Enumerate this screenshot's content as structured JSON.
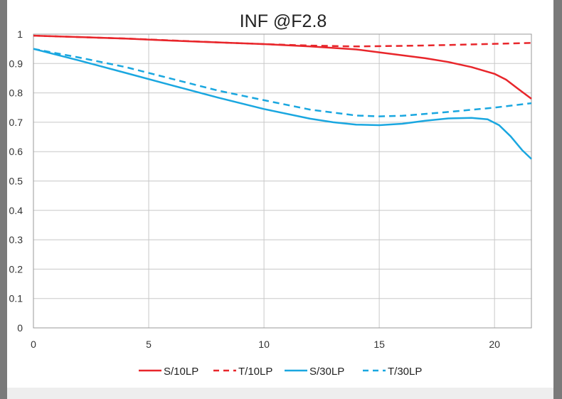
{
  "chart_data": {
    "type": "line",
    "title": "INF @F2.8",
    "xlim": [
      0,
      21.6
    ],
    "ylim": [
      0,
      1
    ],
    "x_ticks": [
      "0",
      "5",
      "10",
      "15",
      "20"
    ],
    "y_ticks": [
      "0",
      "0.1",
      "0.2",
      "0.3",
      "0.4",
      "0.5",
      "0.6",
      "0.7",
      "0.8",
      "0.9",
      "1"
    ],
    "grid": true,
    "legend_position": "bottom",
    "series": [
      {
        "name": "S/10LP",
        "color": "#e8262b",
        "dash": false,
        "x": [
          0,
          2,
          4,
          6,
          8,
          10,
          12,
          14,
          15,
          16,
          17,
          18,
          19,
          20,
          20.5,
          21,
          21.6
        ],
        "y": [
          0.995,
          0.99,
          0.985,
          0.978,
          0.972,
          0.966,
          0.958,
          0.948,
          0.938,
          0.928,
          0.918,
          0.905,
          0.888,
          0.865,
          0.845,
          0.815,
          0.78
        ]
      },
      {
        "name": "T/10LP",
        "color": "#e8262b",
        "dash": true,
        "x": [
          0,
          4,
          8,
          10,
          12,
          14,
          16,
          18,
          20,
          21.6
        ],
        "y": [
          0.995,
          0.985,
          0.972,
          0.966,
          0.961,
          0.958,
          0.96,
          0.963,
          0.967,
          0.97
        ]
      },
      {
        "name": "S/30LP",
        "color": "#1aa7e0",
        "dash": false,
        "x": [
          0,
          2,
          4,
          6,
          8,
          10,
          12,
          13,
          14,
          15,
          16,
          17,
          18,
          19,
          19.7,
          20.2,
          20.7,
          21.2,
          21.6
        ],
        "y": [
          0.95,
          0.91,
          0.868,
          0.826,
          0.784,
          0.745,
          0.712,
          0.7,
          0.692,
          0.69,
          0.695,
          0.705,
          0.713,
          0.715,
          0.71,
          0.69,
          0.652,
          0.605,
          0.575
        ]
      },
      {
        "name": "T/30LP",
        "color": "#1aa7e0",
        "dash": true,
        "x": [
          0,
          2,
          4,
          6,
          8,
          10,
          12,
          14,
          15,
          16,
          18,
          20,
          21.6
        ],
        "y": [
          0.95,
          0.92,
          0.888,
          0.848,
          0.808,
          0.775,
          0.743,
          0.723,
          0.72,
          0.722,
          0.735,
          0.75,
          0.765
        ]
      }
    ]
  }
}
